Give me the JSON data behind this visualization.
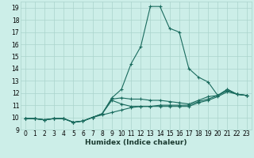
{
  "title": "",
  "xlabel": "Humidex (Indice chaleur)",
  "bg_color": "#cceee8",
  "grid_color": "#aad4cc",
  "line_color": "#1a6b5e",
  "xlim": [
    -0.5,
    23.5
  ],
  "ylim": [
    9,
    19.5
  ],
  "xticks": [
    0,
    1,
    2,
    3,
    4,
    5,
    6,
    7,
    8,
    9,
    10,
    11,
    12,
    13,
    14,
    15,
    16,
    17,
    18,
    19,
    20,
    21,
    22,
    23
  ],
  "yticks": [
    9,
    10,
    11,
    12,
    13,
    14,
    15,
    16,
    17,
    18,
    19
  ],
  "lines": [
    {
      "x": [
        0,
        1,
        2,
        3,
        4,
        5,
        6,
        7,
        8,
        9,
        10,
        11,
        12,
        13,
        14,
        15,
        16,
        17,
        18,
        19,
        20,
        21,
        22,
        23
      ],
      "y": [
        9.9,
        9.9,
        9.8,
        9.9,
        9.9,
        9.6,
        9.7,
        10.0,
        10.3,
        11.6,
        12.3,
        14.4,
        15.8,
        19.1,
        19.1,
        17.3,
        17.0,
        14.0,
        13.3,
        12.9,
        11.8,
        12.3,
        11.9,
        11.8
      ]
    },
    {
      "x": [
        0,
        1,
        2,
        3,
        4,
        5,
        6,
        7,
        8,
        9,
        10,
        11,
        12,
        13,
        14,
        15,
        16,
        17,
        18,
        19,
        20,
        21,
        22,
        23
      ],
      "y": [
        9.9,
        9.9,
        9.8,
        9.9,
        9.9,
        9.6,
        9.7,
        10.0,
        10.3,
        11.5,
        11.6,
        11.5,
        11.5,
        11.4,
        11.4,
        11.3,
        11.2,
        11.1,
        11.4,
        11.7,
        11.8,
        12.3,
        11.9,
        11.8
      ]
    },
    {
      "x": [
        0,
        1,
        2,
        3,
        4,
        5,
        6,
        7,
        8,
        9,
        10,
        11,
        12,
        13,
        14,
        15,
        16,
        17,
        18,
        19,
        20,
        21,
        22,
        23
      ],
      "y": [
        9.9,
        9.9,
        9.8,
        9.9,
        9.9,
        9.6,
        9.7,
        10.0,
        10.3,
        11.4,
        11.1,
        10.9,
        10.9,
        10.9,
        11.0,
        11.0,
        11.0,
        11.0,
        11.3,
        11.5,
        11.8,
        12.2,
        11.9,
        11.8
      ]
    },
    {
      "x": [
        0,
        1,
        2,
        3,
        4,
        5,
        6,
        7,
        8,
        9,
        10,
        11,
        12,
        13,
        14,
        15,
        16,
        17,
        18,
        19,
        20,
        21,
        22,
        23
      ],
      "y": [
        9.9,
        9.9,
        9.8,
        9.9,
        9.9,
        9.6,
        9.7,
        10.0,
        10.2,
        10.4,
        10.6,
        10.8,
        10.9,
        10.9,
        10.9,
        10.9,
        10.9,
        10.9,
        11.2,
        11.4,
        11.7,
        12.1,
        11.9,
        11.8
      ]
    }
  ]
}
